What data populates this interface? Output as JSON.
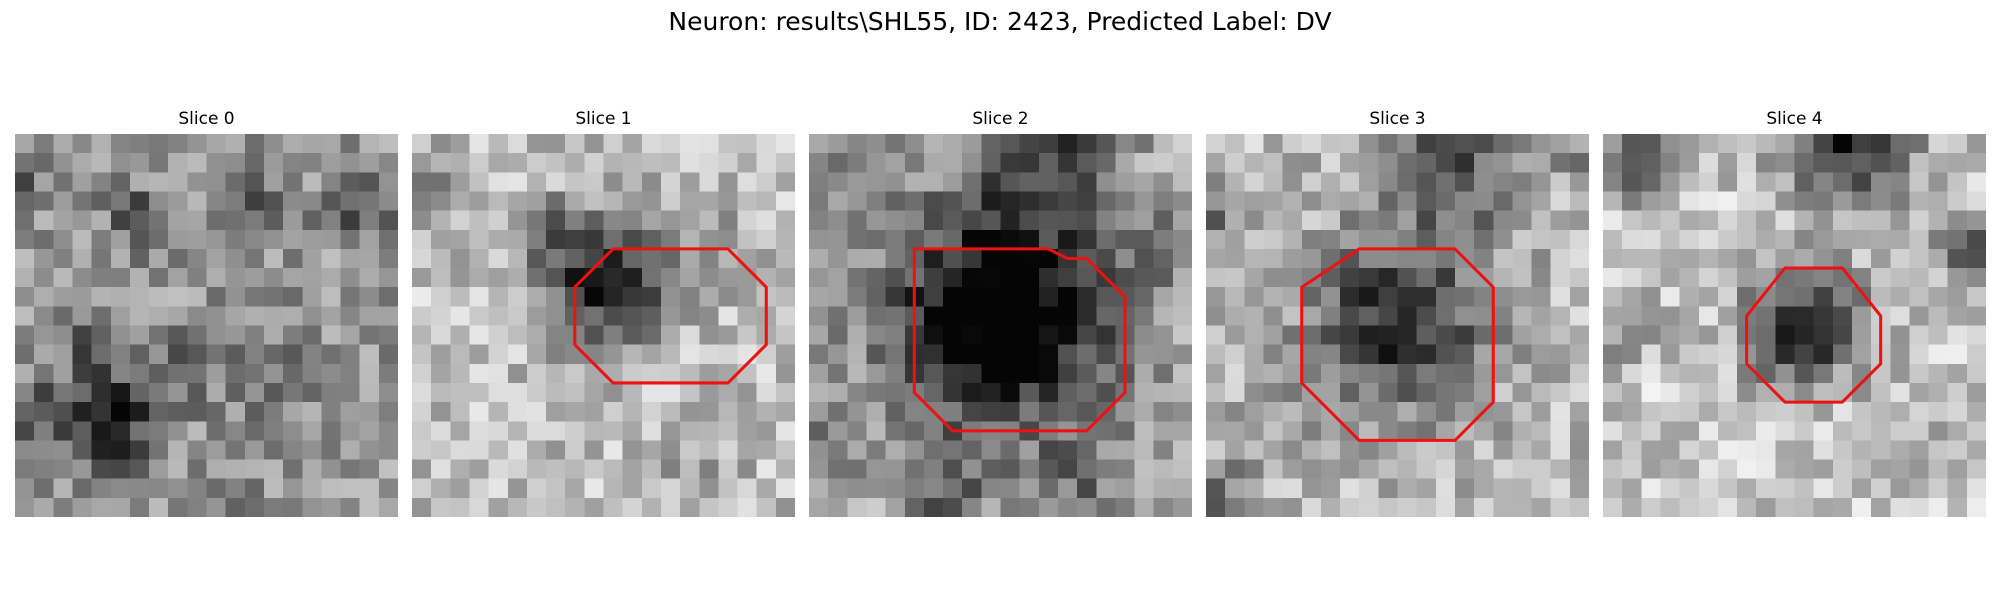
{
  "title": "Neuron: results\\SHL55, ID: 2423, Predicted Label: DV",
  "contour_color": "#ee1111",
  "slices": [
    {
      "label": "Slice 0",
      "has_contour": false,
      "contour": []
    },
    {
      "label": "Slice 1",
      "has_contour": true,
      "contour": [
        [
          13.5,
          6
        ],
        [
          16.5,
          6
        ],
        [
          18.5,
          8
        ],
        [
          18.5,
          11
        ],
        [
          16.5,
          13
        ],
        [
          10.5,
          13
        ],
        [
          8.5,
          11
        ],
        [
          8.5,
          8
        ],
        [
          10.5,
          6
        ]
      ]
    },
    {
      "label": "Slice 2",
      "has_contour": true,
      "contour": [
        [
          5.5,
          6
        ],
        [
          12.5,
          6
        ],
        [
          13.5,
          6.5
        ],
        [
          14.5,
          6.5
        ],
        [
          16.5,
          8.5
        ],
        [
          16.5,
          13.5
        ],
        [
          14.5,
          15.5
        ],
        [
          7.5,
          15.5
        ],
        [
          5.5,
          13.5
        ],
        [
          5.5,
          8.5
        ]
      ]
    },
    {
      "label": "Slice 3",
      "has_contour": true,
      "contour": [
        [
          8,
          6
        ],
        [
          13,
          6
        ],
        [
          15,
          8
        ],
        [
          15,
          14
        ],
        [
          13,
          16
        ],
        [
          8,
          16
        ],
        [
          5,
          13
        ],
        [
          5,
          8
        ]
      ]
    },
    {
      "label": "Slice 4",
      "has_contour": true,
      "contour": [
        [
          9.5,
          7
        ],
        [
          12.5,
          7
        ],
        [
          14.5,
          9.5
        ],
        [
          14.5,
          12
        ],
        [
          12.5,
          14
        ],
        [
          9.5,
          14
        ],
        [
          7.5,
          12
        ],
        [
          7.5,
          9.5
        ]
      ]
    }
  ]
}
